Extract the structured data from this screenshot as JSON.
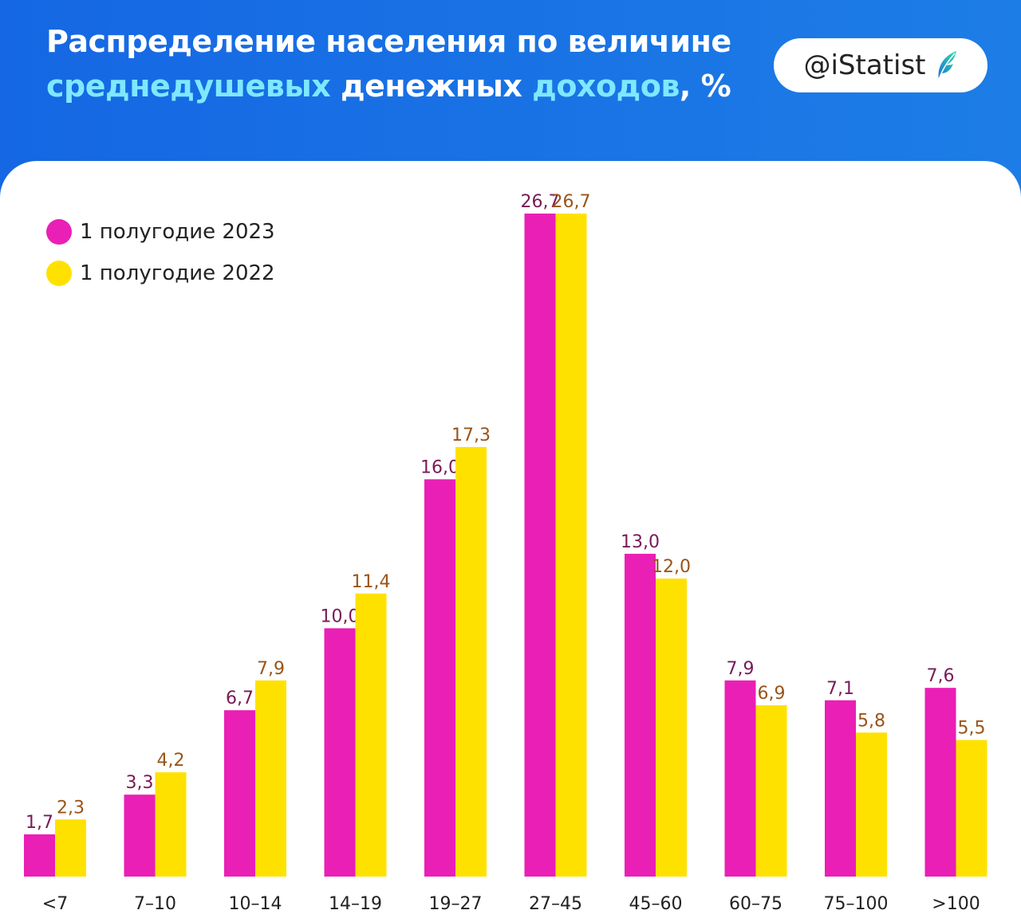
{
  "header": {
    "title_line1": "Распределение населения по величине",
    "title_line2_hl1": "среднедушевых",
    "title_line2_mid": " денежных ",
    "title_line2_hl2": "доходов",
    "title_line2_end": ", %",
    "brand": "@iStatist"
  },
  "colors": {
    "series_2023": "#ea1fb5",
    "series_2022": "#ffe100",
    "label_2023": "#7a1a55",
    "label_2022": "#9a5418",
    "header_bg": "#1a72e4",
    "title_highlight": "#7ee8ff"
  },
  "chart_data": {
    "type": "bar",
    "title": "Распределение населения по величине среднедушевых денежных доходов, %",
    "categories": [
      "<7",
      "7–10",
      "10–14",
      "14–19",
      "19–27",
      "27–45",
      "45–60",
      "60–75",
      "75–100",
      ">100"
    ],
    "series": [
      {
        "name": "1 полугодие 2023",
        "values": [
          1.7,
          3.3,
          6.7,
          10.0,
          16.0,
          26.7,
          13.0,
          7.9,
          7.1,
          7.6
        ],
        "labels": [
          "1,7",
          "3,3",
          "6,7",
          "10,0",
          "16,0",
          "26,7",
          "13,0",
          "7,9",
          "7,1",
          "7,6"
        ]
      },
      {
        "name": "1 полугодие 2022",
        "values": [
          2.3,
          4.2,
          7.9,
          11.4,
          17.3,
          26.7,
          12.0,
          6.9,
          5.8,
          5.5
        ],
        "labels": [
          "2,3",
          "4,2",
          "7,9",
          "11,4",
          "17,3",
          "26,7",
          "12,0",
          "6,9",
          "5,8",
          "5,5"
        ]
      }
    ],
    "ylim": [
      0,
      26.7
    ],
    "grid": false,
    "legend": "top-left"
  }
}
